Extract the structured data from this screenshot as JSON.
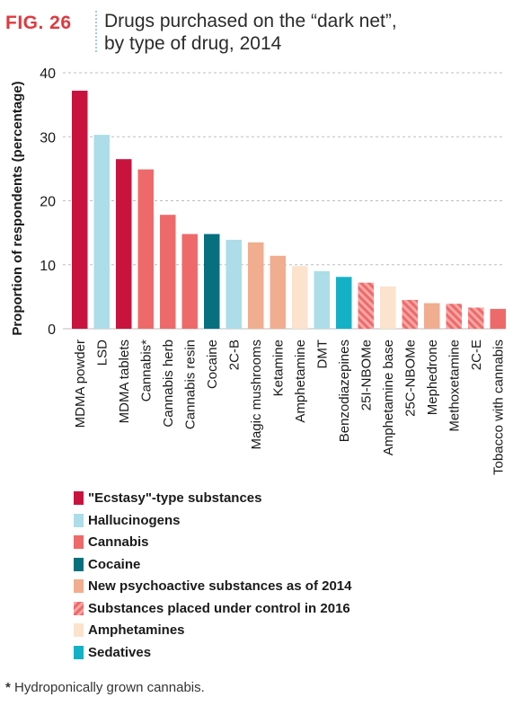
{
  "figure": {
    "label": "FIG. 26",
    "title": "Drugs purchased on the “dark net”,\nby type of drug, 2014",
    "footnote_marker": "*",
    "footnote": "Hydroponically grown cannabis."
  },
  "colors": {
    "ecstasy": "#c8133f",
    "hallucinogens": "#acdde8",
    "cannabis": "#ee6a6a",
    "cocaine": "#06707f",
    "nps": "#f0ad8f",
    "controlled2016": "#ee6a6a",
    "amphetamines": "#fbe3cd",
    "sedatives": "#14b1c6"
  },
  "legend": [
    {
      "key": "ecstasy",
      "label": "\"Ecstasy\"-type substances"
    },
    {
      "key": "hallucinogens",
      "label": "Hallucinogens"
    },
    {
      "key": "cannabis",
      "label": "Cannabis"
    },
    {
      "key": "cocaine",
      "label": "Cocaine"
    },
    {
      "key": "nps",
      "label": "New psychoactive substances as of 2014"
    },
    {
      "key": "controlled2016",
      "label": "Substances placed under control in 2016",
      "hatched": true
    },
    {
      "key": "amphetamines",
      "label": "Amphetamines"
    },
    {
      "key": "sedatives",
      "label": "Sedatives"
    }
  ],
  "chart_data": {
    "type": "bar",
    "title": "Drugs purchased on the “dark net”, by type of drug, 2014",
    "ylabel": "Proportion of respondents (percentage)",
    "xlabel": "",
    "ylim": [
      0,
      40
    ],
    "yticks": [
      0,
      10,
      20,
      30,
      40
    ],
    "grid": true,
    "legend_placement": "bottom",
    "categories": [
      "MDMA powder",
      "LSD",
      "MDMA tablets",
      "Cannabis*",
      "Cannabis herb",
      "Cannabis resin",
      "Cocaine",
      "2C-B",
      "Magic mushrooms",
      "Ketamine",
      "Amphetamine",
      "DMT",
      "Benzodiazepines",
      "25I-NBOMe",
      "Amphetamine base",
      "25C-NBOMe",
      "Mephedrone",
      "Methoxetamine",
      "2C-E",
      "Tobacco with cannabis"
    ],
    "values": [
      37.2,
      30.3,
      26.5,
      24.9,
      17.8,
      14.8,
      14.8,
      13.9,
      13.5,
      11.4,
      9.8,
      9.0,
      8.1,
      7.2,
      6.6,
      4.5,
      4.0,
      3.9,
      3.3,
      3.1
    ],
    "groups": [
      "ecstasy",
      "hallucinogens",
      "ecstasy",
      "cannabis",
      "cannabis",
      "cannabis",
      "cocaine",
      "hallucinogens",
      "nps",
      "nps",
      "amphetamines",
      "hallucinogens",
      "sedatives",
      "controlled2016",
      "amphetamines",
      "controlled2016",
      "nps",
      "controlled2016",
      "controlled2016",
      "cannabis"
    ]
  }
}
